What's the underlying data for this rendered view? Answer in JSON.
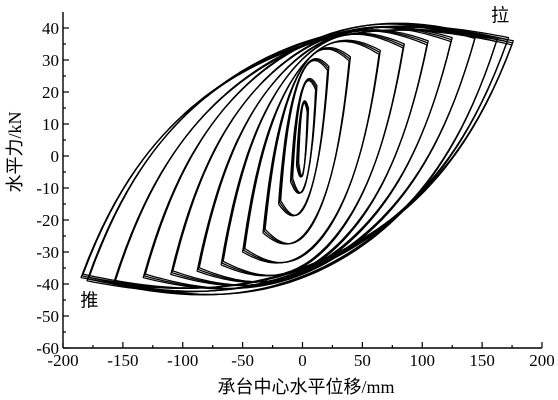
{
  "chart_data": {
    "type": "line",
    "title": "",
    "xlabel": "承台中心水平位移/mm",
    "ylabel": "水平力/kN",
    "xlim": [
      -200,
      200
    ],
    "ylim": [
      -60,
      45
    ],
    "xticks": [
      -200,
      -150,
      -100,
      -50,
      0,
      50,
      100,
      150,
      200
    ],
    "yticks": [
      -60,
      -50,
      -40,
      -30,
      -20,
      -10,
      0,
      10,
      20,
      30,
      40
    ],
    "grid": false,
    "legend": "none",
    "annotations": [
      {
        "text": "拉",
        "x": 165,
        "y": 42
      },
      {
        "text": "推",
        "x": -178,
        "y": -47
      }
    ],
    "series": [
      {
        "loop_min_x": -5,
        "loop_min_y": -3,
        "loop_max_x": 5,
        "loop_max_y": 15
      },
      {
        "loop_min_x": -10,
        "loop_min_y": -8,
        "loop_max_x": 12,
        "loop_max_y": 22
      },
      {
        "loop_min_x": -20,
        "loop_min_y": -15,
        "loop_max_x": 22,
        "loop_max_y": 28
      },
      {
        "loop_min_x": -33,
        "loop_min_y": -24,
        "loop_max_x": 40,
        "loop_max_y": 31
      },
      {
        "loop_min_x": -50,
        "loop_min_y": -30,
        "loop_max_x": 65,
        "loop_max_y": 33
      },
      {
        "loop_min_x": -68,
        "loop_min_y": -34,
        "loop_max_x": 85,
        "loop_max_y": 35
      },
      {
        "loop_min_x": -88,
        "loop_min_y": -36,
        "loop_max_x": 105,
        "loop_max_y": 36
      },
      {
        "loop_min_x": -110,
        "loop_min_y": -37,
        "loop_max_x": 125,
        "loop_max_y": 37
      },
      {
        "loop_min_x": -133,
        "loop_min_y": -38,
        "loop_max_x": 145,
        "loop_max_y": 38
      },
      {
        "loop_min_x": -158,
        "loop_min_y": -40,
        "loop_max_x": 163,
        "loop_max_y": 37
      },
      {
        "loop_min_x": -180,
        "loop_min_y": -39,
        "loop_max_x": 172,
        "loop_max_y": 37
      },
      {
        "loop_min_x": -185,
        "loop_min_y": -38,
        "loop_max_x": 176,
        "loop_max_y": 36
      }
    ]
  }
}
